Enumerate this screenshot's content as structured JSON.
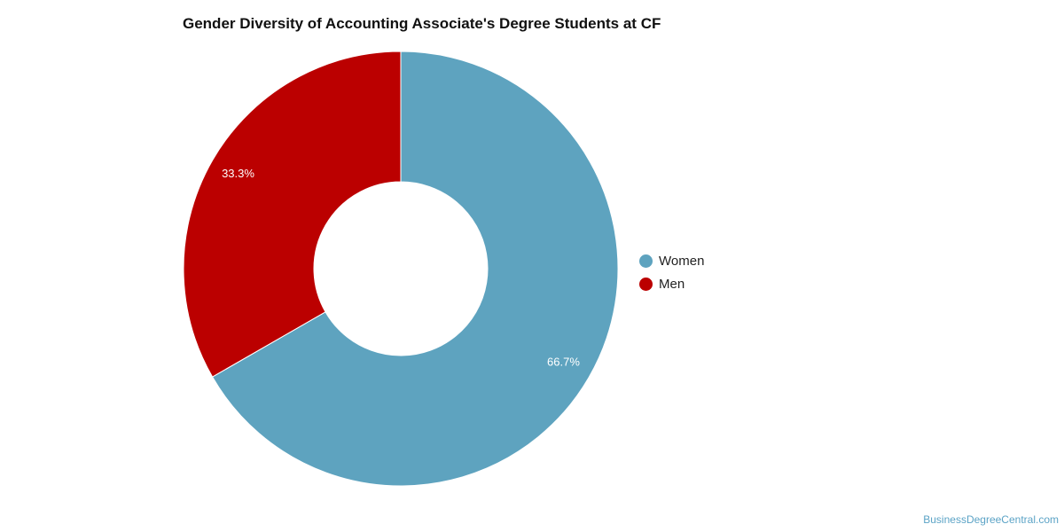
{
  "chart_data": {
    "type": "pie",
    "title": "Gender Diversity of Accounting Associate's Degree Students at CF",
    "donut": true,
    "legend_position": "right",
    "slices": [
      {
        "name": "Women",
        "value": 66.7,
        "label": "66.7%",
        "color": "#5ea3bf"
      },
      {
        "name": "Men",
        "value": 33.3,
        "label": "33.3%",
        "color": "#bb0000"
      }
    ]
  },
  "watermark": "BusinessDegreeCentral.com"
}
